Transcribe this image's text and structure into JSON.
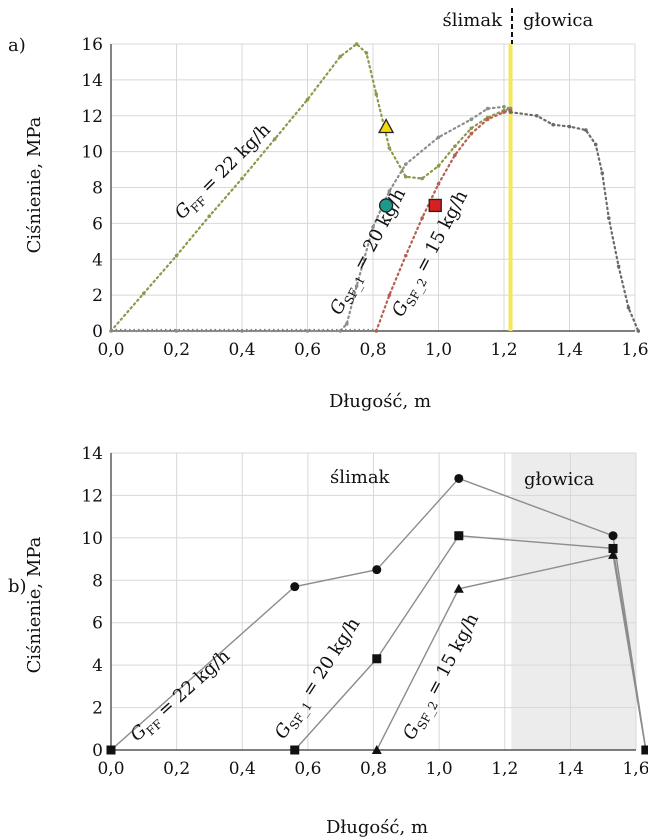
{
  "chart_data": [
    {
      "panel_label": "a)",
      "type": "line",
      "xlabel": "Długość, m",
      "ylabel": "Ciśnienie, MPa",
      "xlim": [
        0,
        1.6
      ],
      "ylim": [
        0,
        16
      ],
      "xticks": [
        "0,0",
        "0,2",
        "0,4",
        "0,6",
        "0,8",
        "1,0",
        "1,2",
        "1,4",
        "1,6"
      ],
      "yticks": [
        "0",
        "2",
        "4",
        "6",
        "8",
        "10",
        "12",
        "14",
        "16"
      ],
      "grid": true,
      "divider_x": 1.22,
      "region_labels": [
        "ślimak",
        "głowica"
      ],
      "series": [
        {
          "name": "G_FF = 22 kg/h",
          "label_main": "G",
          "label_sub": "FF",
          "label_rest": " = 22 kg/h",
          "color": "#8a9a4a",
          "x": [
            0.0,
            0.1,
            0.2,
            0.3,
            0.4,
            0.5,
            0.6,
            0.7,
            0.75,
            0.78,
            0.81,
            0.85,
            0.9,
            0.95,
            1.0,
            1.05,
            1.1,
            1.15,
            1.2,
            1.22
          ],
          "y": [
            0,
            2.1,
            4.2,
            6.4,
            8.5,
            10.7,
            12.9,
            15.3,
            16.0,
            15.5,
            13.2,
            10.2,
            8.6,
            8.5,
            9.2,
            10.3,
            11.3,
            11.9,
            12.3,
            12.4
          ]
        },
        {
          "name": "G_SF_1 = 20 kg/h",
          "label_main": "G",
          "label_sub": "SF_1",
          "label_rest": " = 20 kg/h",
          "color": "#8a8f8c",
          "x": [
            0.0,
            0.2,
            0.4,
            0.6,
            0.7,
            0.72,
            0.75,
            0.8,
            0.85,
            0.9,
            1.0,
            1.1,
            1.15,
            1.2,
            1.22
          ],
          "y": [
            0,
            0,
            0,
            0,
            0,
            0.4,
            2.5,
            5.8,
            7.8,
            9.3,
            10.8,
            11.8,
            12.4,
            12.5,
            12.4
          ]
        },
        {
          "name": "G_SF_2 = 15 kg/h",
          "label_main": "G",
          "label_sub": "SF_2",
          "label_rest": " = 15 kg/h",
          "color": "#b55f55",
          "x": [
            0.81,
            0.85,
            0.9,
            0.95,
            1.0,
            1.05,
            1.1,
            1.15,
            1.2,
            1.22
          ],
          "y": [
            0,
            2.0,
            4.2,
            6.3,
            8.2,
            9.8,
            11.0,
            11.8,
            12.2,
            12.3
          ]
        },
        {
          "name": "głowica",
          "color": "#6a6a64",
          "x": [
            1.22,
            1.3,
            1.35,
            1.4,
            1.45,
            1.48,
            1.5,
            1.52,
            1.55,
            1.58,
            1.61
          ],
          "y": [
            12.2,
            12.0,
            11.5,
            11.4,
            11.2,
            10.4,
            8.8,
            6.3,
            3.6,
            1.3,
            0
          ]
        }
      ],
      "markers": [
        {
          "shape": "triangle",
          "x": 0.84,
          "y": 11.4,
          "color": "#f5d90a"
        },
        {
          "shape": "circle",
          "x": 0.84,
          "y": 7.0,
          "color": "#1a9a8a"
        },
        {
          "shape": "square",
          "x": 0.99,
          "y": 7.0,
          "color": "#d92020"
        }
      ]
    },
    {
      "panel_label": "b)",
      "type": "line",
      "xlabel": "Długość, m",
      "ylabel": "Ciśnienie, MPa",
      "xlim": [
        0,
        1.6
      ],
      "ylim": [
        0,
        14
      ],
      "xticks": [
        "0,0",
        "0,2",
        "0,4",
        "0,6",
        "0,8",
        "1,0",
        "1,2",
        "1,4",
        "1,6"
      ],
      "yticks": [
        "0",
        "2",
        "4",
        "6",
        "8",
        "10",
        "12",
        "14"
      ],
      "grid": true,
      "shaded_from_x": 1.22,
      "region_labels": [
        "ślimak",
        "głowica"
      ],
      "series": [
        {
          "name": "G_FF = 22 kg/h",
          "label_main": "G",
          "label_sub": "FF",
          "label_rest": " = 22 kg/h",
          "marker": "circle",
          "x": [
            0.0,
            0.56,
            0.81,
            1.06,
            1.53,
            1.63
          ],
          "y": [
            0,
            7.7,
            8.5,
            12.8,
            10.1,
            0
          ]
        },
        {
          "name": "G_SF_1 = 20 kg/h",
          "label_main": "G",
          "label_sub": "SF_1",
          "label_rest": " = 20 kg/h",
          "marker": "square",
          "x": [
            0.56,
            0.81,
            1.06,
            1.53,
            1.63
          ],
          "y": [
            0,
            4.3,
            10.1,
            9.5,
            0
          ]
        },
        {
          "name": "G_SF_2 = 15 kg/h",
          "label_main": "G",
          "label_sub": "SF_2",
          "label_rest": " = 15 kg/h",
          "marker": "triangle",
          "x": [
            0.81,
            1.06,
            1.53,
            1.63
          ],
          "y": [
            0,
            7.6,
            9.2,
            0
          ]
        }
      ],
      "endpoint_markers": [
        {
          "shape": "square",
          "x": 0.0,
          "y": 0
        },
        {
          "shape": "square",
          "x": 1.63,
          "y": 0
        }
      ]
    }
  ]
}
